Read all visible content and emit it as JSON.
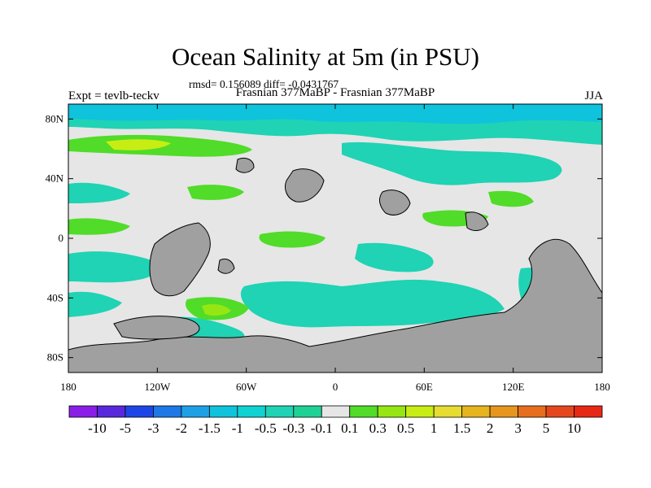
{
  "figure": {
    "title": "Ocean Salinity at 5m (in PSU)",
    "stats": "rmsd= 0.156089 diff= -0.0431767",
    "left_label": "Expt = tevlb-teckv",
    "center_label": "Frasnian 377MaBP - Frasnian 377MaBP",
    "right_label": "JJA"
  },
  "map": {
    "x_ticks": [
      "180",
      "120W",
      "60W",
      "0",
      "60E",
      "120E",
      "180"
    ],
    "y_ticks": [
      "80N",
      "40N",
      "0",
      "40S",
      "80S"
    ],
    "colors": {
      "land": "#a0a0a0",
      "near_zero": "#e6e6e6",
      "neg_small": "#1fd3b4",
      "neg_mid": "#0fc3dc",
      "pos_small": "#50dc28",
      "pos_mid": "#96e614",
      "pos_high": "#c8ed14",
      "pos_strong": "#e6dc32",
      "coast": "#000000"
    }
  },
  "colorbar": {
    "labels": [
      "-10",
      "-5",
      "-3",
      "-2",
      "-1.5",
      "-1",
      "-0.5",
      "-0.3",
      "-0.1",
      "0.1",
      "0.3",
      "0.5",
      "1",
      "1.5",
      "2",
      "3",
      "5",
      "10"
    ],
    "colors": [
      "#8a1ee6",
      "#5a28dc",
      "#1e46e6",
      "#1e78e6",
      "#1ea0e6",
      "#0fc3dc",
      "#0fd2d2",
      "#1fd3b4",
      "#1ed296",
      "#e6e6e6",
      "#50dc28",
      "#96e614",
      "#c8ed14",
      "#e6dc32",
      "#e6b41e",
      "#e6961e",
      "#e66e1e",
      "#e6461e",
      "#e62814"
    ]
  }
}
